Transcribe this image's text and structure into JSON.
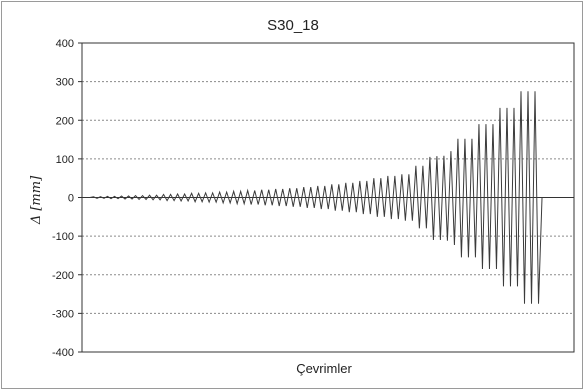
{
  "chart_data": {
    "type": "line",
    "title": "S30_18",
    "xlabel": "Çevrimler",
    "ylabel": "Δ [mm]",
    "ylim": [
      -400,
      400
    ],
    "yticks": [
      "400",
      "300",
      "200",
      "100",
      "0",
      "-100",
      "-200",
      "-300",
      "-400"
    ],
    "grid": "horizontal dotted",
    "legend": "none",
    "colors": {
      "series": "#3b3b3b",
      "grid": "#8a8a8a",
      "axis": "#333333"
    },
    "series": [
      {
        "values": [
          0,
          2,
          -2,
          2,
          -2,
          3,
          -3,
          3,
          -3,
          4,
          -4,
          4,
          -4,
          5,
          -5,
          5,
          -5,
          6,
          -6,
          6,
          -6,
          8,
          -8,
          8,
          -8,
          9,
          -9,
          9,
          -9,
          11,
          -11,
          11,
          -11,
          12,
          -12,
          12,
          -12,
          14,
          -14,
          14,
          -14,
          16,
          -16,
          16,
          -16,
          18,
          -18,
          18,
          -18,
          20,
          -20,
          20,
          -20,
          22,
          -22,
          22,
          -22,
          24,
          -24,
          24,
          -24,
          27,
          -27,
          27,
          -27,
          30,
          -30,
          30,
          -30,
          34,
          -34,
          34,
          -34,
          38,
          -38,
          38,
          -38,
          43,
          -43,
          43,
          -43,
          50,
          -50,
          50,
          -50,
          56,
          -56,
          56,
          -56,
          60,
          -60,
          60,
          -60,
          82,
          -80,
          82,
          -80,
          105,
          -110,
          107,
          -110,
          108,
          -112,
          120,
          -123,
          152,
          -155,
          152,
          -155,
          152,
          -155,
          190,
          -185,
          190,
          -185,
          190,
          -185,
          232,
          -230,
          232,
          -230,
          232,
          -230,
          275,
          -275,
          275,
          -275,
          275,
          -275,
          0
        ]
      }
    ]
  }
}
